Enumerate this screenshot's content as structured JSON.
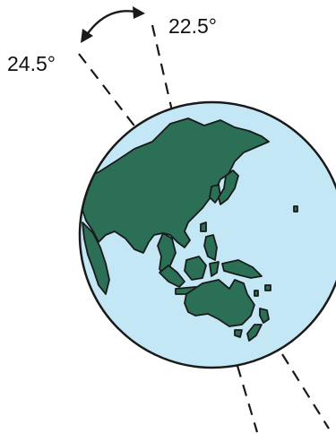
{
  "labels": {
    "tilt_max": "24.5°",
    "tilt_min": "22.5°"
  },
  "colors": {
    "ocean": "#c4e7f5",
    "land": "#2b7056",
    "outline": "#1a1a1a",
    "axis": "#1a1a1a"
  },
  "icons": {
    "globe": "globe-icon",
    "arrow": "double-headed-curved-arrow"
  }
}
